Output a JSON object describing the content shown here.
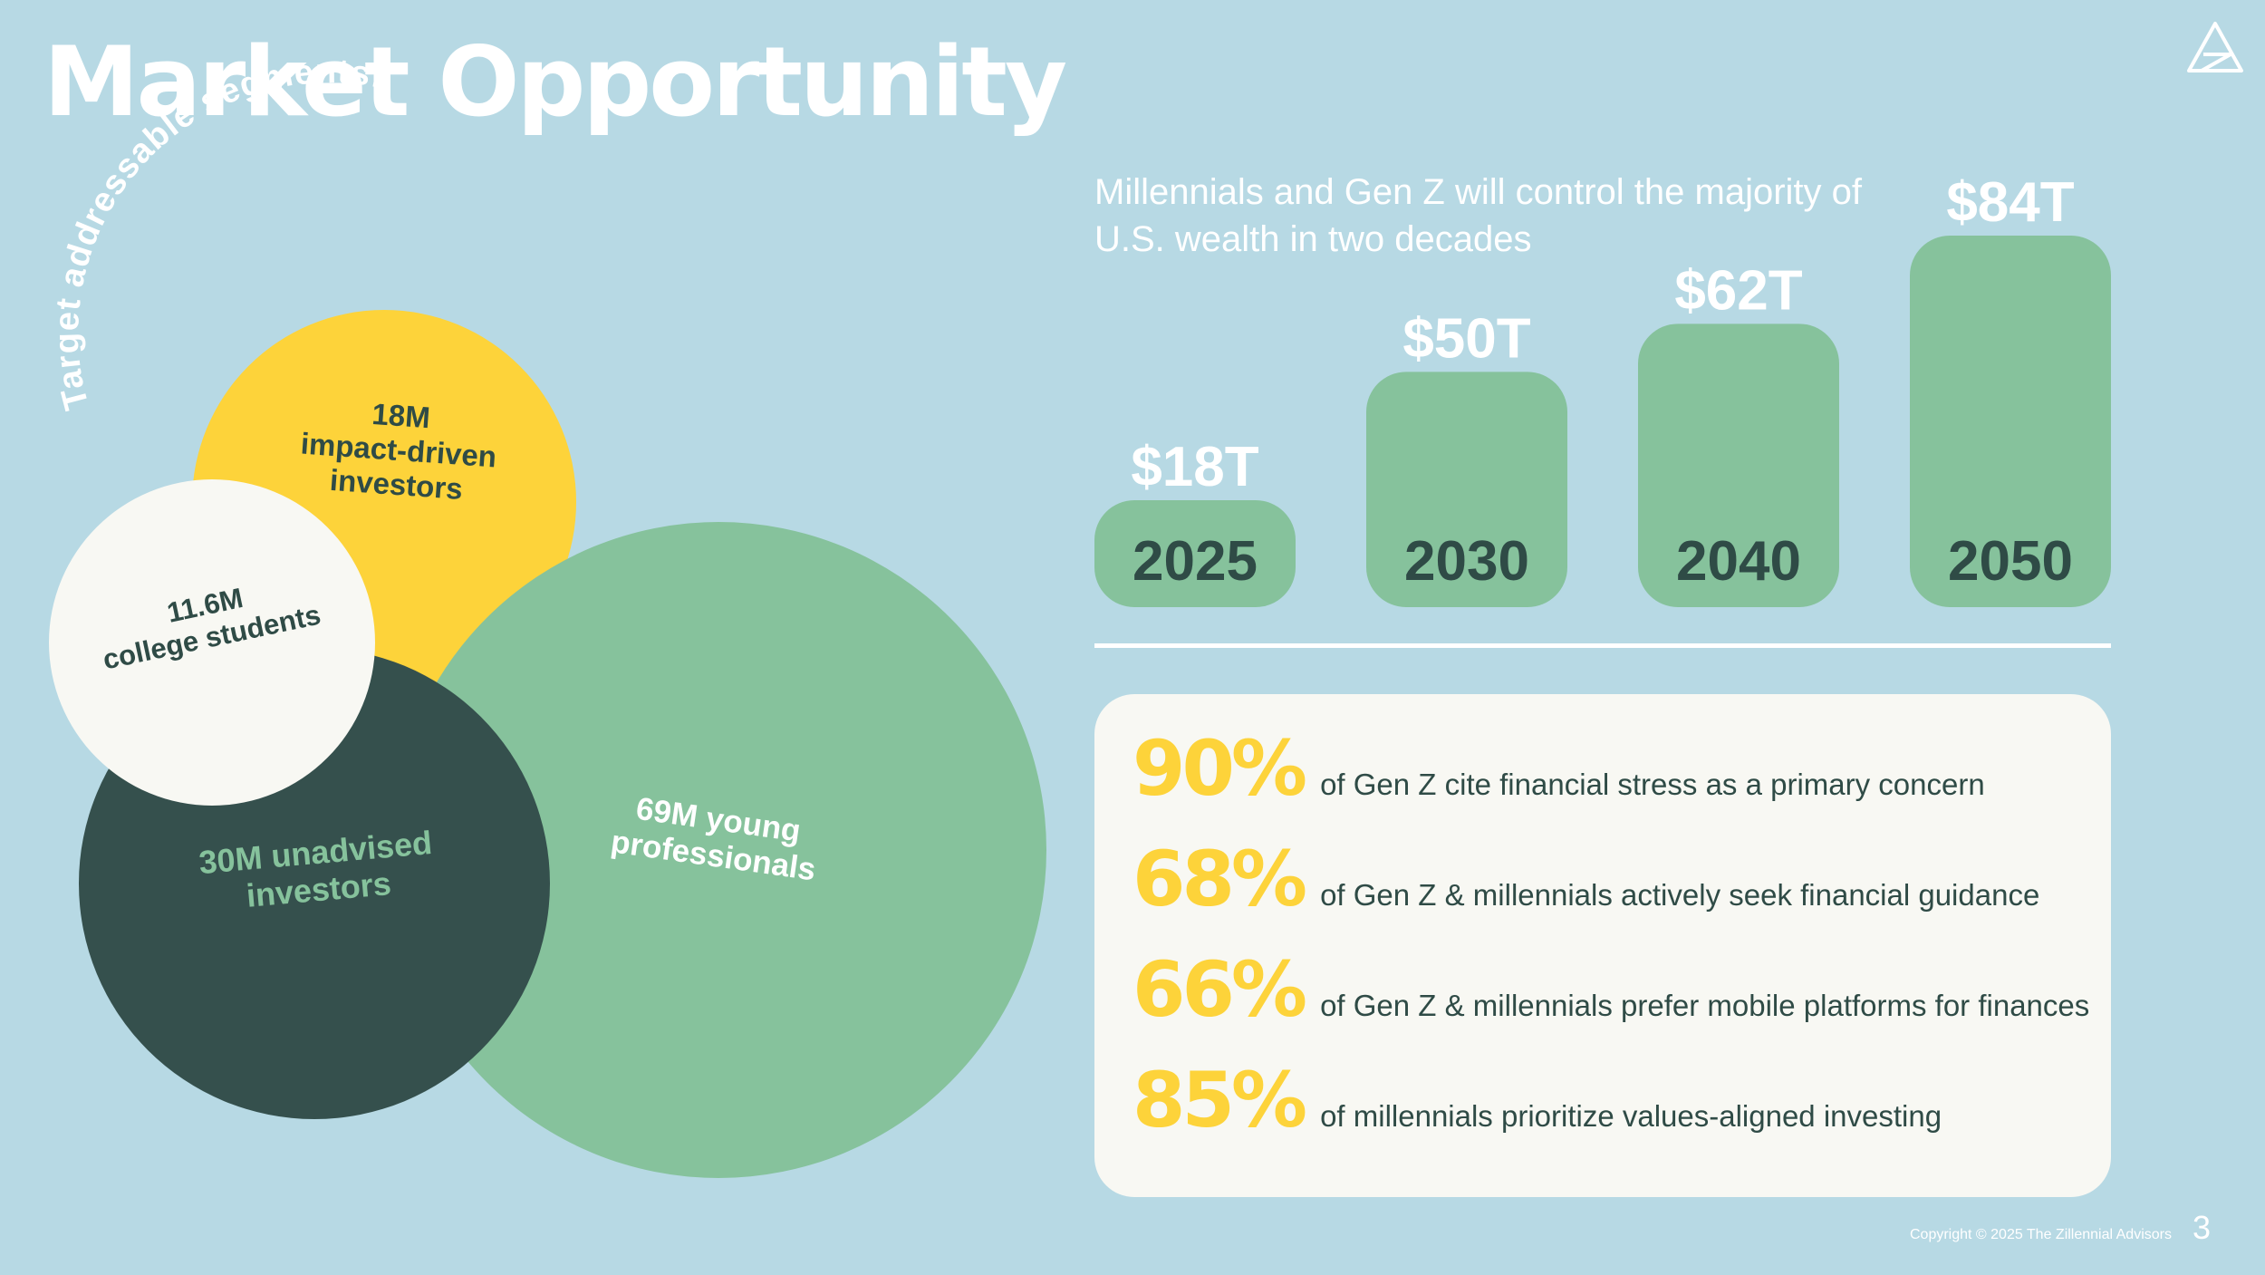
{
  "slide": {
    "title": "Market Opportunity",
    "logo_icon": "triangle-logo-icon",
    "copyright": "Copyright © 2025 The Zillennial Advisors",
    "page_number": "3"
  },
  "segments": {
    "heading": "Target addressable segments:",
    "items": [
      {
        "key": "impact",
        "label_lines": [
          "18M",
          "impact-driven",
          "investors"
        ],
        "color": "#fdd33a"
      },
      {
        "key": "college",
        "label_lines": [
          "11.6M",
          "college students"
        ],
        "color": "#f8f8f3"
      },
      {
        "key": "unadvised",
        "label_lines": [
          "30M unadvised",
          "investors"
        ],
        "color": "#35504d"
      },
      {
        "key": "young",
        "label_lines": [
          "69M young",
          "professionals"
        ],
        "color": "#86c29c"
      }
    ]
  },
  "chart_data": {
    "type": "bar",
    "title": "Millennials and Gen Z will control the majority of U.S. wealth in two decades",
    "categories": [
      "2025",
      "2030",
      "2040",
      "2050"
    ],
    "values": [
      18,
      50,
      62,
      84
    ],
    "value_labels": [
      "$18T",
      "$50T",
      "$62T",
      "$84T"
    ],
    "unit": "T",
    "bar_color": "#86c29c",
    "ylim": [
      0,
      84
    ],
    "grid": false
  },
  "stats": [
    {
      "value": "90%",
      "text": "of Gen Z cite financial stress as a primary concern"
    },
    {
      "value": "68%",
      "text": "of Gen Z & millennials actively seek financial guidance"
    },
    {
      "value": "66%",
      "text": "of Gen Z & millennials prefer mobile platforms for finances"
    },
    {
      "value": "85%",
      "text": "of millennials prioritize values-aligned investing"
    }
  ]
}
